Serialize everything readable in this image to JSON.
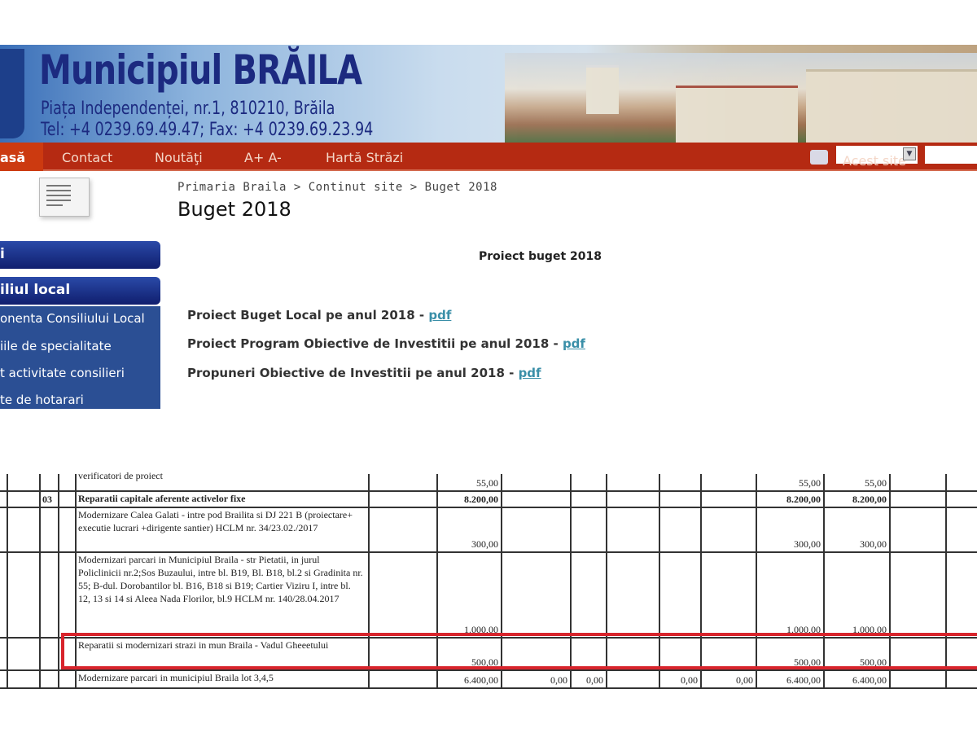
{
  "header": {
    "title": "Municipiul BRĂILA",
    "address": "Piața Independenței, nr.1, 810210, Brăila",
    "contact": "Tel: +4 0239.69.49.47;  Fax: +4 0239.69.23.94"
  },
  "nav": {
    "items": [
      "asă",
      "Contact",
      "Noutăţi",
      "A+ A-",
      "Hartă Străzi"
    ],
    "search_scope": "Acest site",
    "search_value": ""
  },
  "breadcrumb": [
    "Primaria Braila",
    ">",
    "Continut site",
    ">",
    "Buget 2018"
  ],
  "page_title": "Buget 2018",
  "sidebar": {
    "section1": "i",
    "section2": "iliul local",
    "items": [
      "onenta Consiliului Local",
      "iile de specialitate",
      "t activitate consilieri",
      "te de hotarari"
    ]
  },
  "content": {
    "heading": "Proiect buget 2018",
    "links": [
      {
        "text": "Proiect Buget Local pe anul 2018 - ",
        "link": "pdf"
      },
      {
        "text": "Proiect Program Obiective de Investitii pe anul 2018 - ",
        "link": "pdf"
      },
      {
        "text": "Propuneri Obiective de Investitii pe anul 2018 - ",
        "link": "pdf"
      }
    ]
  },
  "table": {
    "rows": [
      {
        "code": "",
        "desc": "verificatori de proiect",
        "values": [
          "55,00",
          "",
          "",
          "",
          "",
          "55,00",
          "55,00"
        ]
      },
      {
        "code": "03",
        "desc": "Reparatii capitale aferente activelor fixe",
        "values": [
          "8.200,00",
          "",
          "",
          "",
          "",
          "8.200,00",
          "8.200,00"
        ]
      },
      {
        "code": "",
        "desc": "Modernizare Calea Galati - intre pod Brailita si DJ 221 B (proiectare+ executie lucrari +dirigente santier) HCLM nr. 34/23.02./2017",
        "values": [
          "300,00",
          "",
          "",
          "",
          "",
          "300,00",
          "300,00"
        ]
      },
      {
        "code": "",
        "desc": "Modernizari parcari in Municipiul Braila - str Pietatii, in jurul Policlinicii nr.2;Sos Buzaului, intre bl. B19, Bl. B18, bl.2 si Gradinita nr. 55; B-dul. Dorobantilor bl. B16, B18 si B19; Cartier Viziru I, intre bl. 12, 13 si 14 si Aleea Nada Florilor, bl.9 HCLM nr. 140/28.04.2017",
        "values": [
          "1.000,00",
          "",
          "",
          "",
          "",
          "1.000,00",
          "1.000,00"
        ]
      },
      {
        "code": "",
        "desc": "Reparatii si modernizari strazi in mun Braila - Vadul Gheeetului",
        "values": [
          "500,00",
          "",
          "",
          "",
          "",
          "500,00",
          "500,00"
        ],
        "highlighted": true
      },
      {
        "code": "",
        "desc": "Modernizare parcari in municipiul Braila lot 3,4,5",
        "values": [
          "6.400,00",
          "0,00",
          "0,00",
          "0,00",
          "0,00",
          "6.400,00",
          "6.400,00"
        ]
      }
    ]
  },
  "colors": {
    "nav": "#b52a12",
    "sidebar": "#2b4f94",
    "title": "#1c2a80",
    "highlight": "#d8242c",
    "link": "#3a8fa8"
  }
}
